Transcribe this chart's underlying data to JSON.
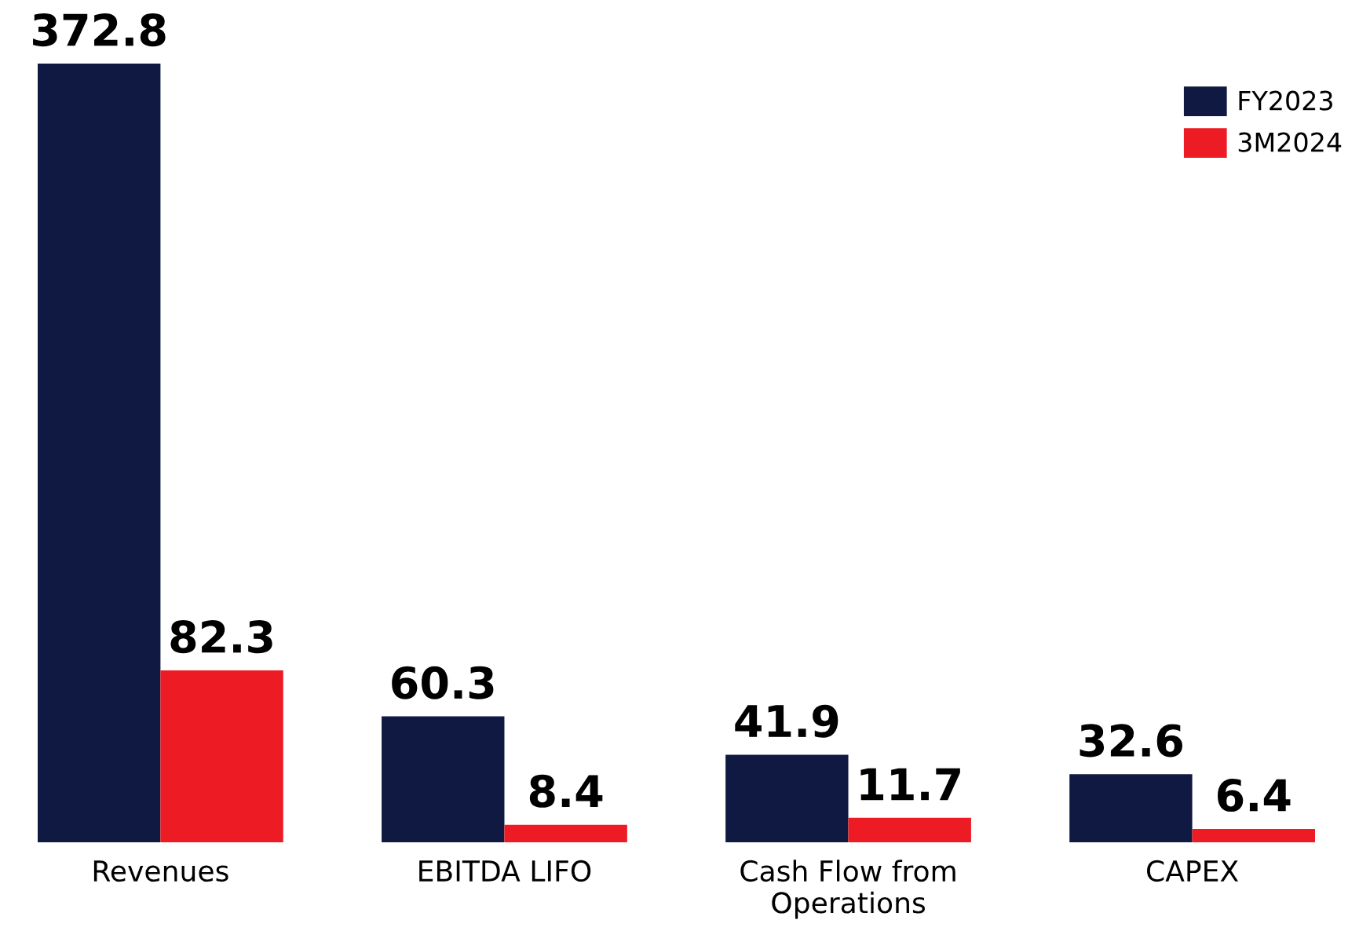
{
  "chart_data": {
    "type": "bar",
    "categories": [
      "Revenues",
      "EBITDA LIFO",
      "Cash Flow from\nOperations",
      "CAPEX"
    ],
    "series": [
      {
        "name": "FY2023",
        "color": "#0f1941",
        "values": [
          372.8,
          60.3,
          41.9,
          32.6
        ]
      },
      {
        "name": "3M2024",
        "color": "#ed1c24",
        "values": [
          82.3,
          8.4,
          11.7,
          6.4
        ]
      }
    ],
    "data_labels": true,
    "grid": false,
    "legend": "top right"
  }
}
